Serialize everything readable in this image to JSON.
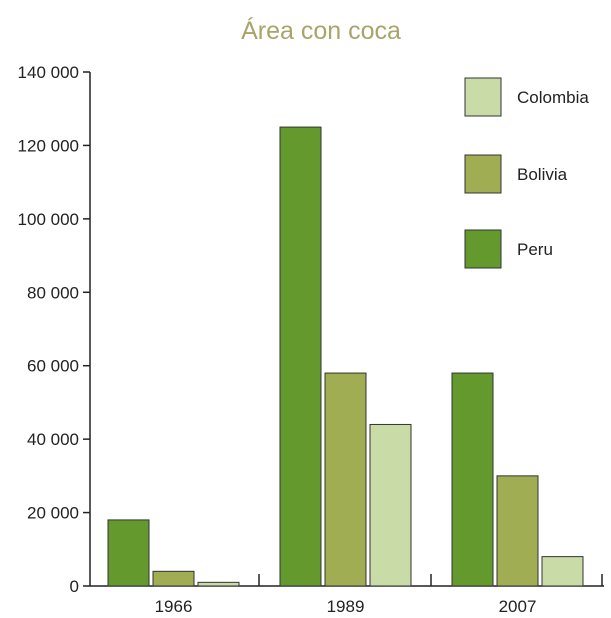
{
  "chart_data": {
    "type": "bar",
    "title": "Área con coca",
    "xlabel": "",
    "ylabel": "",
    "categories": [
      "1966",
      "1989",
      "2007"
    ],
    "series": [
      {
        "name": "Peru",
        "color": "#649a2d",
        "values": [
          18000,
          125000,
          58000
        ]
      },
      {
        "name": "Bolivia",
        "color": "#a1ad53",
        "values": [
          4000,
          58000,
          30000
        ]
      },
      {
        "name": "Colombia",
        "color": "#c9dba6",
        "values": [
          1000,
          44000,
          8000
        ]
      }
    ],
    "ylim": [
      0,
      140000
    ],
    "yticks": [
      0,
      20000,
      40000,
      60000,
      80000,
      100000,
      120000,
      140000
    ],
    "ytick_labels": [
      "0",
      "20 000",
      "40 000",
      "60 000",
      "80 000",
      "100 000",
      "120 000",
      "140 000"
    ],
    "legend": [
      "Colombia",
      "Bolivia",
      "Peru"
    ],
    "legend_position": "top-right",
    "grid": false
  }
}
